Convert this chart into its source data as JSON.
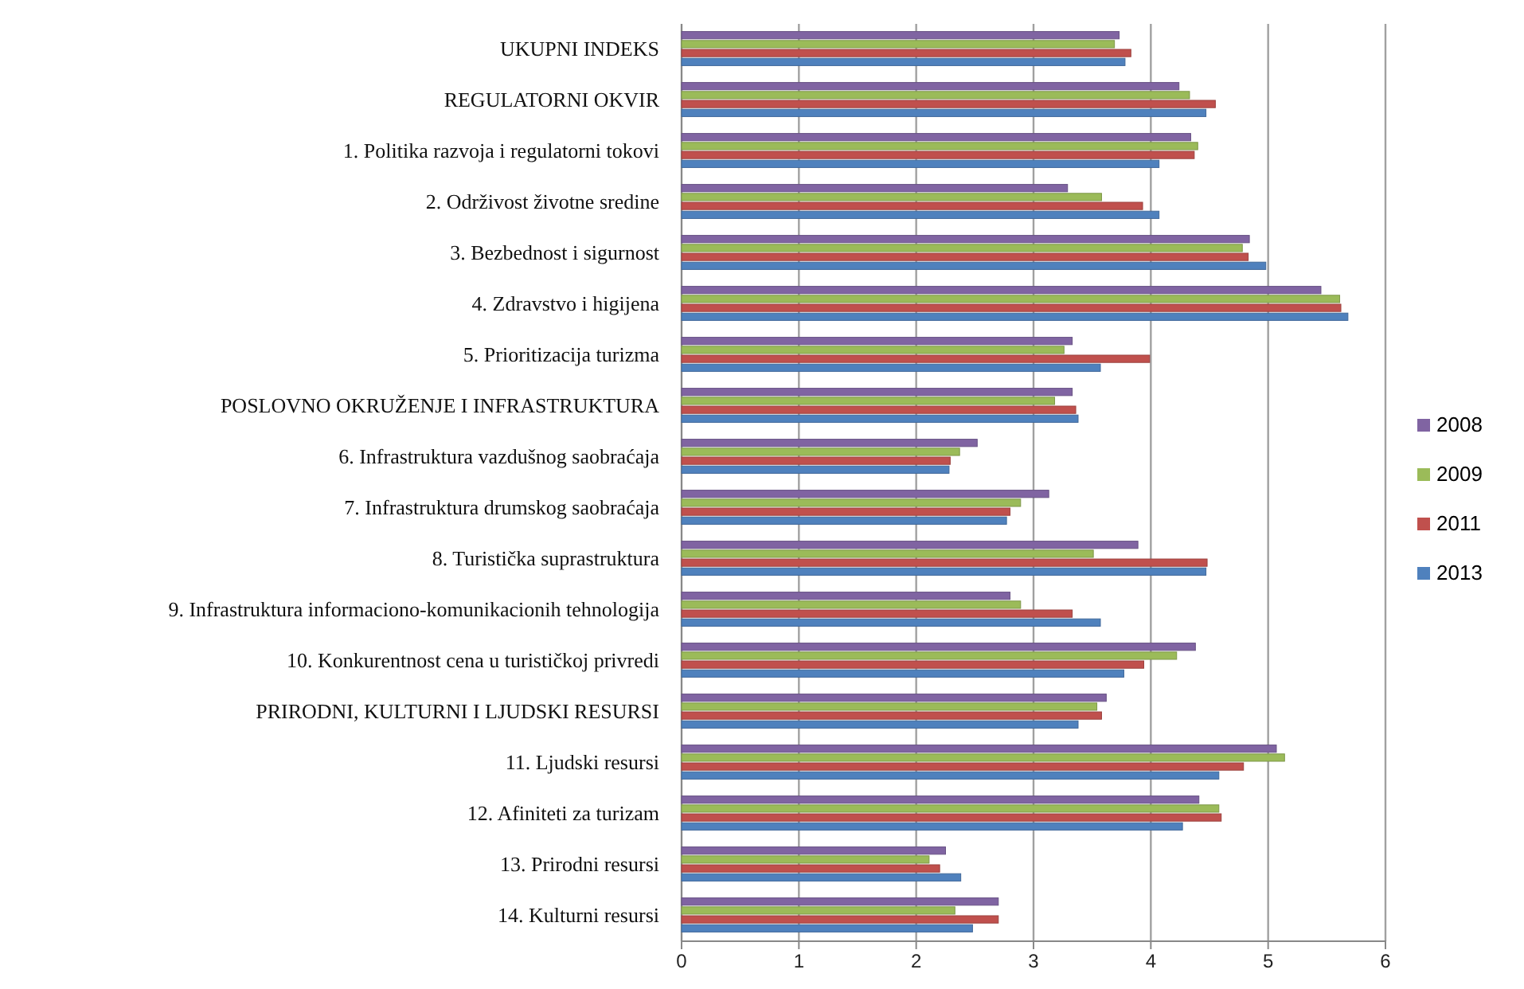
{
  "chart_data": {
    "type": "bar",
    "orientation": "horizontal",
    "categories": [
      "UKUPNI INDEKS",
      "REGULATORNI OKVIR",
      "1. Politika razvoja i regulatorni tokovi",
      "2. Održivost životne sredine",
      "3. Bezbednost i sigurnost",
      "4. Zdravstvo i higijena",
      "5. Prioritizacija turizma",
      "POSLOVNO OKRUŽENJE I INFRASTRUKTURA",
      "6. Infrastruktura vazdušnog saobraćaja",
      "7. Infrastruktura drumskog saobraćaja",
      "8. Turistička suprastruktura",
      "9. Infrastruktura informaciono-komunikacionih tehnologija",
      "10. Konkurentnost cena u turističkoj privredi",
      "PRIRODNI, KULTURNI I LJUDSKI RESURSI",
      "11. Ljudski resursi",
      "12. Afiniteti za turizam",
      "13. Prirodni resursi",
      "14. Kulturni resursi"
    ],
    "series": [
      {
        "name": "2008",
        "color": "#8064a2",
        "values": [
          3.73,
          4.24,
          4.34,
          3.29,
          4.84,
          5.45,
          3.33,
          3.33,
          2.52,
          3.13,
          3.89,
          2.8,
          4.38,
          3.62,
          5.07,
          4.41,
          2.25,
          2.7
        ]
      },
      {
        "name": "2009",
        "color": "#9bbb59",
        "values": [
          3.69,
          4.33,
          4.4,
          3.58,
          4.78,
          5.61,
          3.26,
          3.18,
          2.37,
          2.89,
          3.51,
          2.89,
          4.22,
          3.54,
          5.14,
          4.58,
          2.11,
          2.33
        ]
      },
      {
        "name": "2011",
        "color": "#c0504d",
        "values": [
          3.83,
          4.55,
          4.37,
          3.93,
          4.83,
          5.62,
          3.99,
          3.36,
          2.29,
          2.8,
          4.48,
          3.33,
          3.94,
          3.58,
          4.79,
          4.6,
          2.2,
          2.7
        ]
      },
      {
        "name": "2013",
        "color": "#4f81bd",
        "values": [
          3.78,
          4.47,
          4.07,
          4.07,
          4.98,
          5.68,
          3.57,
          3.38,
          2.28,
          2.77,
          4.47,
          3.57,
          3.77,
          3.38,
          4.58,
          4.27,
          2.38,
          2.48
        ]
      }
    ],
    "xlim": [
      0,
      6
    ],
    "xticks": [
      0,
      1,
      2,
      3,
      4,
      5,
      6
    ],
    "grid": "x",
    "legend": "right"
  }
}
